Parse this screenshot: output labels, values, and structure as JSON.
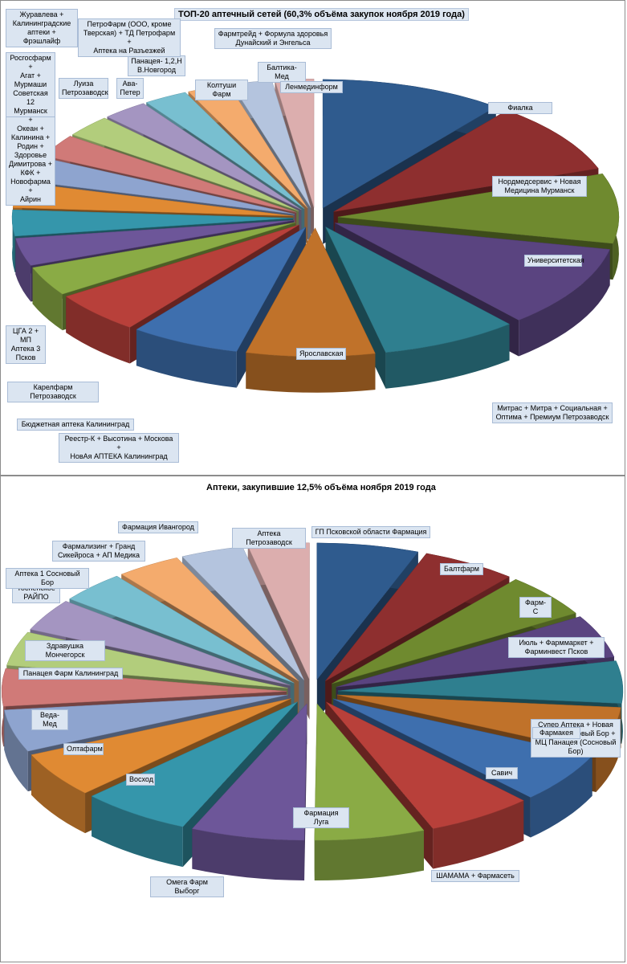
{
  "colors": {
    "palette": [
      "#2f5b8e",
      "#8e2f2f",
      "#6f8a2f",
      "#5a4480",
      "#2f7f8f",
      "#c0722a",
      "#3e6fae",
      "#b8403a",
      "#8aab45",
      "#6d5699",
      "#3596ab",
      "#e08a33",
      "#8ea4cf",
      "#d07a78",
      "#b2cd7c",
      "#a495c1",
      "#78bfd0",
      "#f4ab6d",
      "#b4c4de",
      "#dcaeae"
    ],
    "label_bg": "#dbe5f1"
  },
  "charts": [
    {
      "title": "ТОП-20 аптечный сетей (60,3% объёма закупок ноября 2019 года)",
      "chart_data": {
        "type": "pie",
        "title": "ТОП-20 аптечный сетей (60,3% объёма закупок ноября 2019 года)",
        "style": "3d-exploded",
        "legend": "none",
        "slices": [
          {
            "label": "Фиалка",
            "value": 10.0
          },
          {
            "label": "Нордмедсервис + Новая\nМедицина Мурманск",
            "value": 8.5
          },
          {
            "label": "Университетская",
            "value": 8.3
          },
          {
            "label": "Митрас + Митра + Социальная +\nОптима + Премиум Петрозаводск",
            "value": 9.8
          },
          {
            "label": "Ярославская",
            "value": 7.5
          },
          {
            "label": "Реестр-К + Высотина + Москова +\nНовАя АПТЕКА Калининград",
            "value": 7.0
          },
          {
            "label": "Бюджетная аптека Калининград",
            "value": 6.0
          },
          {
            "label": "Карелфарм Петрозаводск",
            "value": 5.0
          },
          {
            "label": "ЦГА 2 + МП\nАптека 3\nПсков",
            "value": 3.5
          },
          {
            "label": "Сити-Фарм +\nОкеан +\nКалинина +\nРодин +\nЗдоровье\nДимитрова +\nКФК +\nНовофарма +\nАйрин",
            "value": 3.3
          },
          {
            "label": "Росгосфарм +\nАгат +\nМурмаши\nСоветская 12\nМурманск",
            "value": 3.1
          },
          {
            "label": "Журавлева +\nКалининградские\nаптеки + Фрэшлайф",
            "value": 3.0
          },
          {
            "label": "Луиза\nПетрозаводск",
            "value": 2.9
          },
          {
            "label": "Ава-\nПетер",
            "value": 2.7
          },
          {
            "label": "Панацея- 1,2,Н\nВ.Новгород",
            "value": 2.6
          },
          {
            "label": "ПетроФарм (ООО, кроме\nТверская) + ТД Петрофарм +\nАптека на Разъезжей",
            "value": 2.5
          },
          {
            "label": "Колтуши Фарм",
            "value": 2.4
          },
          {
            "label": "Фармтрейд + Формула здоровья\nДунайский и Энгельса",
            "value": 2.3
          },
          {
            "label": "Балтика-Мед",
            "value": 2.2
          },
          {
            "label": "Ленмединформ",
            "value": 2.1
          }
        ]
      }
    },
    {
      "title": "Аптеки, закупившие 12,5% объёма ноября 2019 года",
      "chart_data": {
        "type": "pie",
        "title": "Аптеки, закупившие 12,5% объёма ноября 2019 года",
        "style": "3d-exploded",
        "legend": "none",
        "slices": [
          {
            "label": "ГП Псковской области Фармация",
            "value": 6.0
          },
          {
            "label": "Балтфарм",
            "value": 5.6
          },
          {
            "label": "Фарм-С",
            "value": 5.4
          },
          {
            "label": "Июль + Фарммаркет +\nФарминвест Псков",
            "value": 5.3
          },
          {
            "label": "Супер Аптека + Новая\nаптека Сосновый Бор +\nМЦ Панацея (Сосновый\nБор)",
            "value": 5.2
          },
          {
            "label": "Фармакея",
            "value": 5.6
          },
          {
            "label": "Савич",
            "value": 6.2
          },
          {
            "label": "ШАМАМА + Фармасеть",
            "value": 6.3
          },
          {
            "label": "Фармация Луга",
            "value": 6.5
          },
          {
            "label": "Омега Фарм Выборг",
            "value": 6.7
          },
          {
            "label": "Восход",
            "value": 6.5
          },
          {
            "label": "Олтафарм",
            "value": 5.6
          },
          {
            "label": "Веда-Мед",
            "value": 5.2
          },
          {
            "label": "Панацея Фарм Калининград",
            "value": 4.6
          },
          {
            "label": "Здравушка Мончегорск",
            "value": 4.2
          },
          {
            "label": "Тосненское\nРАЙПО",
            "value": 4.0
          },
          {
            "label": "Аптека 1 Сосновый Бор",
            "value": 3.9
          },
          {
            "label": "Фармализинг + Гранд\nСикейроса + АП Медика",
            "value": 3.8
          },
          {
            "label": "Фармация Ивангород",
            "value": 3.7
          },
          {
            "label": "Аптека Петрозаводск",
            "value": 3.6
          }
        ]
      }
    }
  ]
}
